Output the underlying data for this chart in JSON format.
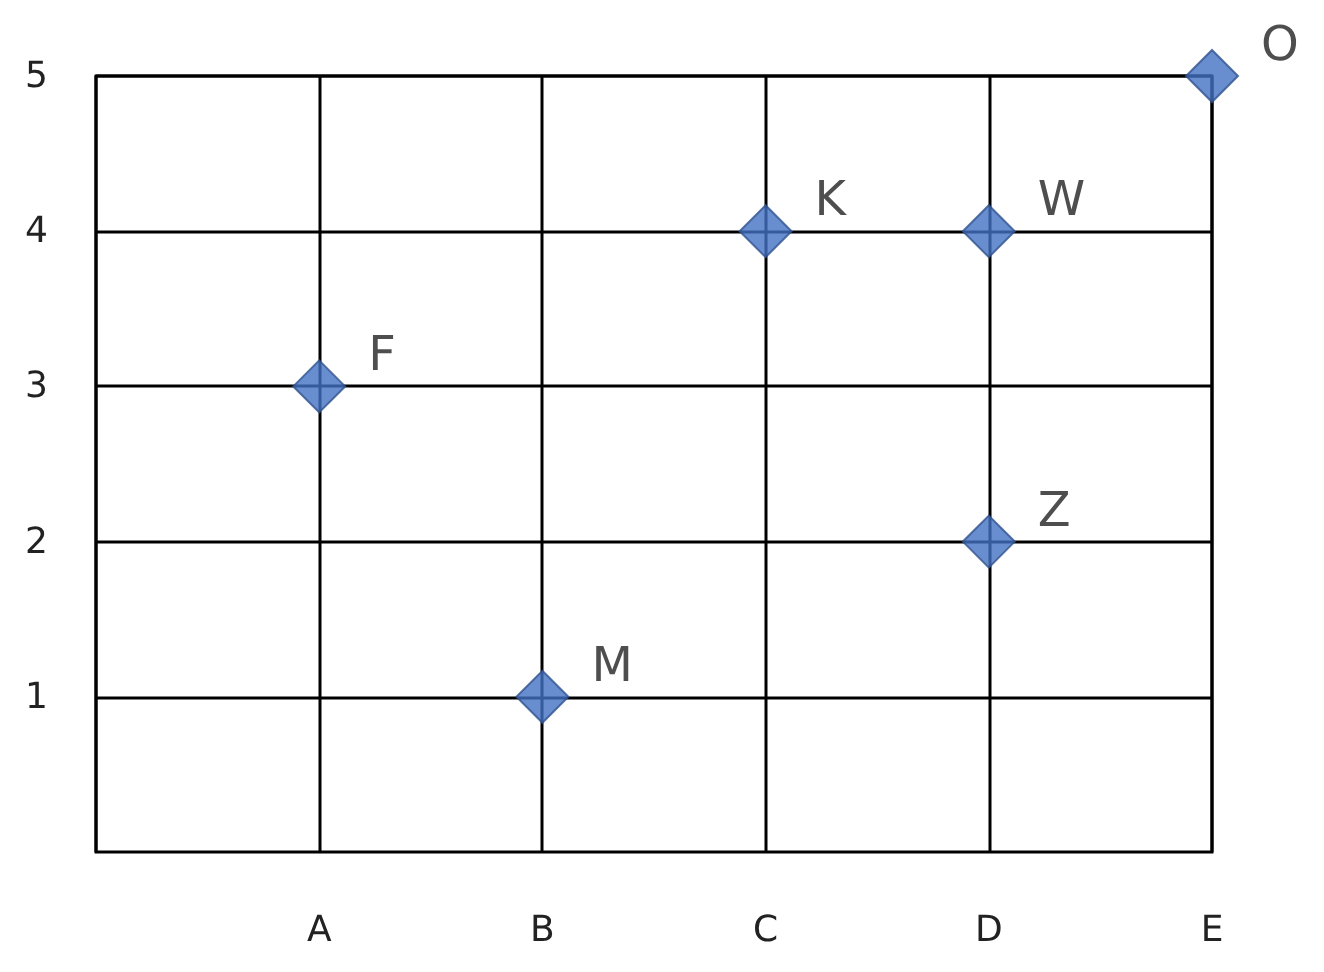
{
  "chart_data": {
    "type": "scatter",
    "categories": [
      null,
      "A",
      "B",
      "C",
      "D",
      "E"
    ],
    "series": [
      {
        "color": "#4472c4",
        "values": [
          null,
          3,
          1,
          4,
          4,
          5
        ],
        "value_labels": [
          null,
          "F",
          "M",
          "K",
          "W",
          "O"
        ]
      },
      {
        "color": "#4472c4",
        "values": [
          null,
          null,
          null,
          null,
          2,
          null
        ],
        "value_labels": [
          null,
          null,
          null,
          null,
          "Z",
          null
        ]
      }
    ],
    "marker": "diamond",
    "grid": true,
    "ylim": [
      0,
      5
    ],
    "yticks": [
      1,
      2,
      3,
      4,
      5
    ]
  }
}
